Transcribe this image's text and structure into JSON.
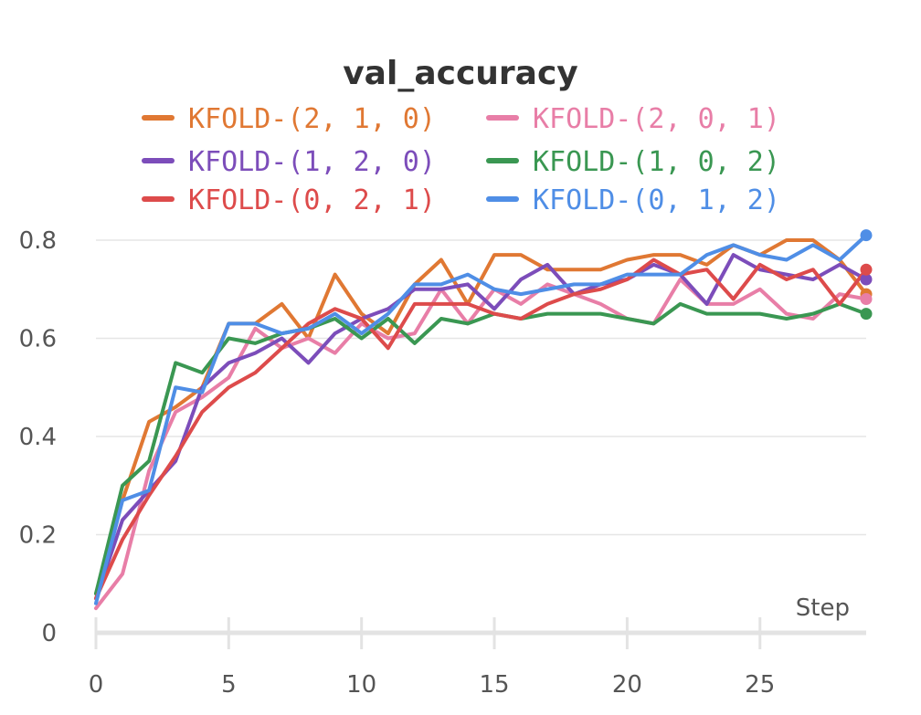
{
  "chart_data": {
    "type": "line",
    "title": "val_accuracy",
    "xlabel": "Step",
    "ylabel": "",
    "xlim": [
      0,
      29
    ],
    "ylim": [
      0,
      0.85
    ],
    "x_ticks": [
      0,
      5,
      10,
      15,
      20,
      25
    ],
    "y_ticks": [
      0,
      0.2,
      0.4,
      0.6,
      0.8
    ],
    "y_tick_labels": [
      "0",
      "0.2",
      "0.4",
      "0.6",
      "0.8"
    ],
    "legend_position": "top",
    "grid": true,
    "x": [
      0,
      1,
      2,
      3,
      4,
      5,
      6,
      7,
      8,
      9,
      10,
      11,
      12,
      13,
      14,
      15,
      16,
      17,
      18,
      19,
      20,
      21,
      22,
      23,
      24,
      25,
      26,
      27,
      28,
      29
    ],
    "series": [
      {
        "name": "KFOLD-(2, 1, 0)",
        "color": "#e07833",
        "values": [
          0.08,
          0.27,
          0.43,
          0.46,
          0.5,
          0.63,
          0.63,
          0.67,
          0.6,
          0.73,
          0.65,
          0.61,
          0.71,
          0.76,
          0.67,
          0.77,
          0.77,
          0.74,
          0.74,
          0.74,
          0.76,
          0.77,
          0.77,
          0.75,
          0.79,
          0.77,
          0.8,
          0.8,
          0.76,
          0.69
        ]
      },
      {
        "name": "KFOLD-(2, 0, 1)",
        "color": "#e87ea7",
        "values": [
          0.05,
          0.12,
          0.33,
          0.45,
          0.48,
          0.52,
          0.62,
          0.58,
          0.6,
          0.57,
          0.63,
          0.6,
          0.61,
          0.7,
          0.63,
          0.7,
          0.67,
          0.71,
          0.69,
          0.67,
          0.64,
          0.63,
          0.72,
          0.67,
          0.67,
          0.7,
          0.65,
          0.64,
          0.69,
          0.68
        ]
      },
      {
        "name": "KFOLD-(1, 2, 0)",
        "color": "#7c4dba",
        "values": [
          0.07,
          0.23,
          0.29,
          0.35,
          0.5,
          0.55,
          0.57,
          0.6,
          0.55,
          0.61,
          0.64,
          0.66,
          0.7,
          0.7,
          0.71,
          0.66,
          0.72,
          0.75,
          0.69,
          0.71,
          0.72,
          0.75,
          0.73,
          0.67,
          0.77,
          0.74,
          0.73,
          0.72,
          0.75,
          0.72
        ]
      },
      {
        "name": "KFOLD-(1, 0, 2)",
        "color": "#3a9752",
        "values": [
          0.08,
          0.3,
          0.35,
          0.55,
          0.53,
          0.6,
          0.59,
          0.61,
          0.62,
          0.64,
          0.6,
          0.64,
          0.59,
          0.64,
          0.63,
          0.65,
          0.64,
          0.65,
          0.65,
          0.65,
          0.64,
          0.63,
          0.67,
          0.65,
          0.65,
          0.65,
          0.64,
          0.65,
          0.67,
          0.65
        ]
      },
      {
        "name": "KFOLD-(0, 2, 1)",
        "color": "#dd4b4b",
        "values": [
          0.07,
          0.19,
          0.28,
          0.36,
          0.45,
          0.5,
          0.53,
          0.58,
          0.63,
          0.66,
          0.64,
          0.58,
          0.67,
          0.67,
          0.67,
          0.65,
          0.64,
          0.67,
          0.69,
          0.7,
          0.72,
          0.76,
          0.73,
          0.74,
          0.68,
          0.75,
          0.72,
          0.74,
          0.67,
          0.74
        ]
      },
      {
        "name": "KFOLD-(0, 1, 2)",
        "color": "#4f8ee6",
        "values": [
          0.06,
          0.27,
          0.29,
          0.5,
          0.49,
          0.63,
          0.63,
          0.61,
          0.62,
          0.65,
          0.61,
          0.65,
          0.71,
          0.71,
          0.73,
          0.7,
          0.69,
          0.7,
          0.71,
          0.71,
          0.73,
          0.73,
          0.73,
          0.77,
          0.79,
          0.77,
          0.76,
          0.79,
          0.76,
          0.81
        ]
      }
    ]
  }
}
